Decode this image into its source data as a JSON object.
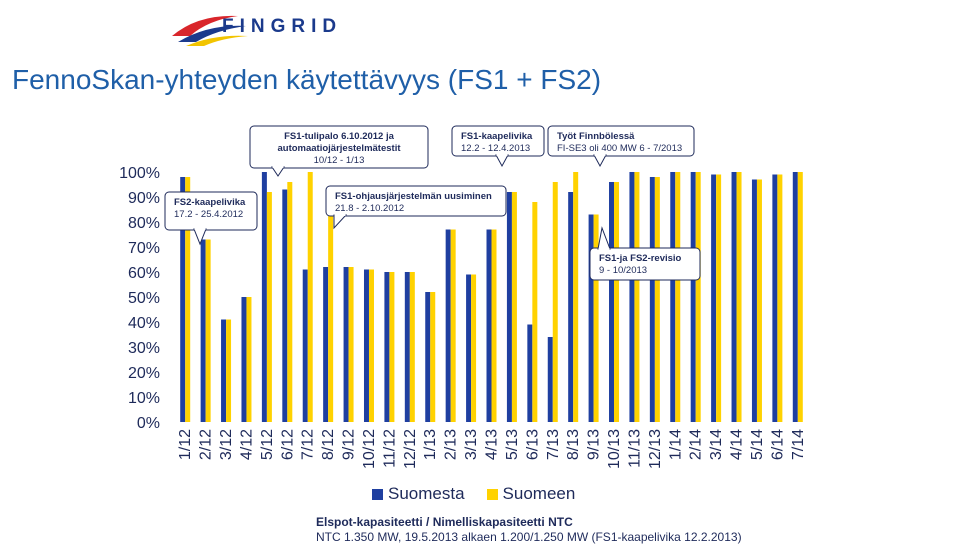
{
  "header": {
    "brand": "FINGRID",
    "title": "FennoSkan-yhteyden käytettävyys (FS1 + FS2)"
  },
  "chart_data": {
    "type": "bar",
    "title": "FennoSkan-yhteyden käytettävyys (FS1 + FS2)",
    "ylim": [
      0,
      100
    ],
    "yticks": [
      "0%",
      "10%",
      "20%",
      "30%",
      "40%",
      "50%",
      "60%",
      "70%",
      "80%",
      "90%",
      "100%"
    ],
    "categories": [
      "1/12",
      "2/12",
      "3/12",
      "4/12",
      "5/12",
      "6/12",
      "7/12",
      "8/12",
      "9/12",
      "10/12",
      "11/12",
      "12/12",
      "1/13",
      "2/13",
      "3/13",
      "4/13",
      "5/13",
      "6/13",
      "7/13",
      "8/13",
      "9/13",
      "10/13",
      "11/13",
      "12/13",
      "1/14",
      "2/14",
      "3/14",
      "4/14",
      "5/14",
      "6/14",
      "7/14"
    ],
    "series": [
      {
        "name": "Suomesta",
        "color": "#1f3fa0",
        "values": [
          98,
          73,
          41,
          50,
          100,
          93,
          61,
          62,
          62,
          61,
          60,
          60,
          52,
          77,
          59,
          77,
          92,
          39,
          34,
          92,
          83,
          96,
          100,
          98,
          100,
          100,
          99,
          100,
          97,
          99,
          100
        ]
      },
      {
        "name": "Suomeen",
        "color": "#ffd200",
        "values": [
          98,
          73,
          41,
          50,
          92,
          96,
          100,
          83,
          62,
          61,
          60,
          60,
          52,
          77,
          59,
          77,
          92,
          88,
          96,
          100,
          83,
          96,
          100,
          98,
          100,
          100,
          99,
          100,
          97,
          99,
          100
        ]
      }
    ],
    "annotations": [
      {
        "lines": [
          "FS2-kaapelivika",
          "17.2 - 25.4.2012"
        ]
      },
      {
        "lines": [
          "FS1-tulipalo 6.10.2012 ja",
          "automaatiojärjestelmätestit",
          "10/12 - 1/13"
        ]
      },
      {
        "lines": [
          "FS1-kaapelivika",
          "12.2 - 12.4.2013"
        ]
      },
      {
        "lines": [
          "Työt Finnbölessä",
          "FI-SE3 oli 400 MW 6 - 7/2013"
        ]
      },
      {
        "lines": [
          "FS1-ohjausjärjestelmän uusiminen",
          "21.8 - 2.10.2012"
        ]
      },
      {
        "lines": [
          "FS1-ja FS2-revisio",
          "9 - 10/2013"
        ]
      }
    ]
  },
  "legend": {
    "from_label": "Suomesta",
    "to_label": "Suomeen"
  },
  "footer": {
    "line1": "Elspot-kapasiteetti / Nimelliskapasiteetti NTC",
    "line2": "NTC 1.350 MW, 19.5.2013 alkaen 1.200/1.250 MW (FS1-kaapelivika 12.2.2013)"
  }
}
